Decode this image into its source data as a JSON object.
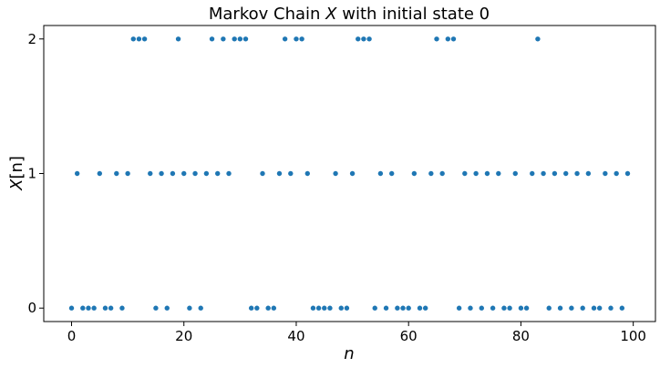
{
  "chart_data": {
    "type": "scatter",
    "title": "Markov Chain X with initial state 0",
    "title_parts": {
      "prefix": "Markov Chain ",
      "var": "X",
      "suffix": " with initial state 0"
    },
    "xlabel": "n",
    "ylabel": "X[n]",
    "ylabel_parts": {
      "var": "X",
      "rest": "[n]"
    },
    "xlim": [
      -4.95,
      103.95
    ],
    "ylim": [
      -0.1,
      2.1
    ],
    "xticks": [
      0,
      20,
      40,
      60,
      80,
      100
    ],
    "yticks": [
      0,
      1,
      2
    ],
    "grid": false,
    "marker_color": "#1f77b4",
    "x": [
      0,
      1,
      2,
      3,
      4,
      5,
      6,
      7,
      8,
      9,
      10,
      11,
      12,
      13,
      14,
      15,
      16,
      17,
      18,
      19,
      20,
      21,
      22,
      23,
      24,
      25,
      26,
      27,
      28,
      29,
      30,
      31,
      32,
      33,
      34,
      35,
      36,
      37,
      38,
      39,
      40,
      41,
      42,
      43,
      44,
      45,
      46,
      47,
      48,
      49,
      50,
      51,
      52,
      53,
      54,
      55,
      56,
      57,
      58,
      59,
      60,
      61,
      62,
      63,
      64,
      65,
      66,
      67,
      68,
      69,
      70,
      71,
      72,
      73,
      74,
      75,
      76,
      77,
      78,
      79,
      80,
      81,
      82,
      83,
      84,
      85,
      86,
      87,
      88,
      89,
      90,
      91,
      92,
      93,
      94,
      95,
      96,
      97,
      98,
      99
    ],
    "y": [
      0,
      1,
      0,
      0,
      0,
      1,
      0,
      0,
      1,
      0,
      1,
      2,
      2,
      2,
      1,
      0,
      1,
      0,
      1,
      2,
      1,
      0,
      1,
      0,
      1,
      2,
      1,
      2,
      1,
      2,
      2,
      2,
      0,
      0,
      1,
      0,
      0,
      1,
      2,
      1,
      2,
      2,
      1,
      0,
      0,
      0,
      0,
      1,
      0,
      0,
      1,
      2,
      2,
      2,
      0,
      1,
      0,
      1,
      0,
      0,
      0,
      1,
      0,
      0,
      1,
      2,
      1,
      2,
      2,
      0,
      1,
      0,
      1,
      0,
      1,
      0,
      1,
      0,
      0,
      1,
      0,
      0,
      1,
      2,
      1,
      0,
      1,
      0,
      1,
      0,
      1,
      0,
      1,
      0,
      0,
      1,
      0,
      1,
      0,
      1
    ]
  }
}
